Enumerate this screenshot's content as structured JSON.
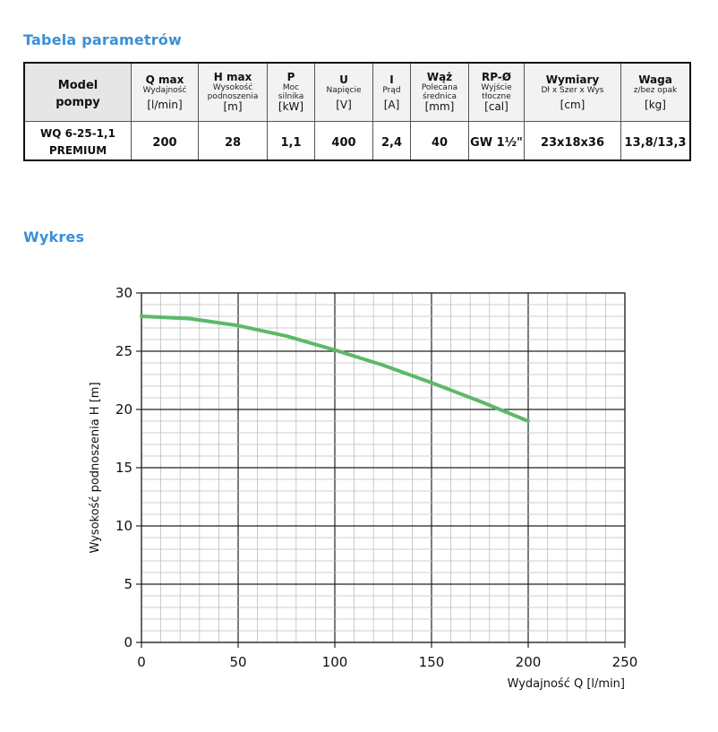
{
  "section_table_title": "Tabela parametrów",
  "section_chart_title": "Wykres",
  "table": {
    "model_header": [
      "Model",
      "pompy"
    ],
    "columns": [
      {
        "main": "Q max",
        "sub": [
          "Wydajność"
        ],
        "unit": "[l/min]"
      },
      {
        "main": "H max",
        "sub": [
          "Wysokość",
          "podnoszenia"
        ],
        "unit": "[m]"
      },
      {
        "main": "P",
        "sub": [
          "Moc",
          "silnika"
        ],
        "unit": "[kW]"
      },
      {
        "main": "U",
        "sub": [
          "Napięcie"
        ],
        "unit": "[V]"
      },
      {
        "main": "I",
        "sub": [
          "Prąd"
        ],
        "unit": "[A]"
      },
      {
        "main": "Wąż",
        "sub": [
          "Polecana",
          "średnica"
        ],
        "unit": "[mm]"
      },
      {
        "main": "RP-Ø",
        "sub": [
          "Wyjście",
          "tłoczne"
        ],
        "unit": "[cal]"
      },
      {
        "main": "Wymiary",
        "sub": [
          "Dł x Szer x Wys"
        ],
        "unit": "[cm]"
      },
      {
        "main": "Waga",
        "sub": [
          "z/bez opak"
        ],
        "unit": "[kg]"
      }
    ],
    "rows": [
      {
        "model": [
          "WQ 6-25-1,1",
          "PREMIUM"
        ],
        "values": [
          "200",
          "28",
          "1,1",
          "400",
          "2,4",
          "40",
          "GW 1½\"",
          "23x18x36",
          "13,8/13,3"
        ]
      }
    ]
  },
  "chart_data": {
    "type": "line",
    "xlabel": "Wydajność Q [l/min]",
    "ylabel": "Wysokość podnoszenia H [m]",
    "xlim": [
      0,
      250
    ],
    "ylim": [
      0,
      30
    ],
    "xticks": [
      "0",
      "50",
      "100",
      "150",
      "200",
      "250"
    ],
    "yticks": [
      "0",
      "5",
      "10",
      "15",
      "20",
      "25",
      "30"
    ],
    "grid": true,
    "series": [
      {
        "color": "#5db86a",
        "x": [
          0,
          25,
          50,
          75,
          100,
          125,
          150,
          175,
          200
        ],
        "y": [
          28,
          27.8,
          27.2,
          26.3,
          25.1,
          23.8,
          22.3,
          20.7,
          19
        ]
      }
    ]
  }
}
